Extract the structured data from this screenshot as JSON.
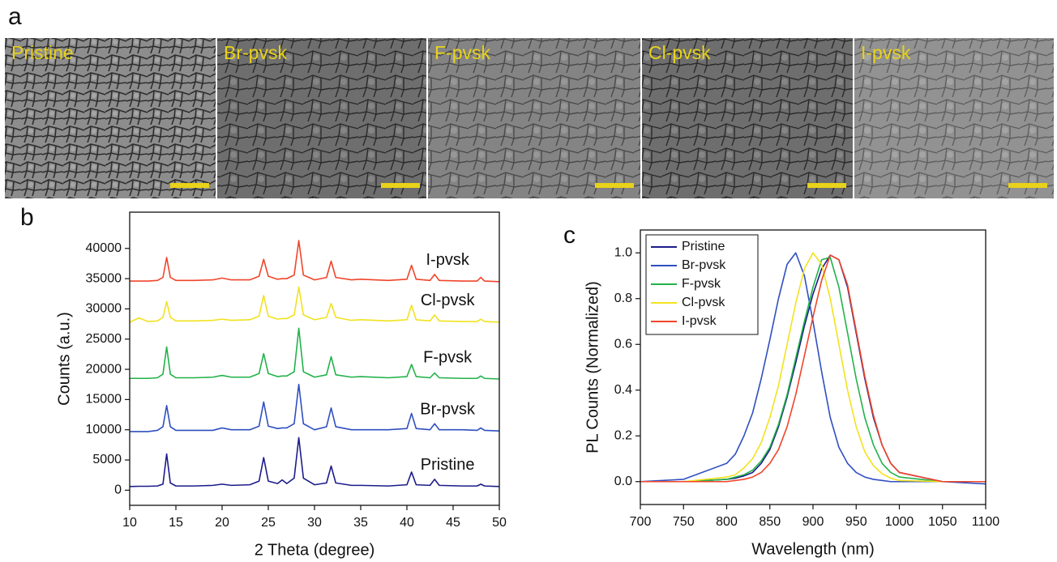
{
  "sem_panel": {
    "panel_label": "a",
    "labels": [
      "Pristine",
      "Br-pvsk",
      "F-pvsk",
      "Cl-pvsk",
      "I-pvsk"
    ]
  },
  "chart_data": [
    {
      "type": "line",
      "panel_label": "b",
      "x_label": "2 Theta (degree)",
      "y_label": "Counts (a.u.)",
      "x": [
        10,
        11,
        12,
        13,
        13.6,
        14,
        14.4,
        15,
        17,
        19,
        20,
        21,
        23,
        24,
        24.5,
        25,
        26,
        26.5,
        27,
        27.8,
        28.3,
        28.8,
        30,
        31.3,
        31.8,
        32.3,
        34,
        35,
        38,
        40,
        40.5,
        41,
        42.5,
        43,
        43.5,
        46,
        47.6,
        48,
        48.4,
        50
      ],
      "series": [
        {
          "name": "Pristine",
          "color": "#1c1c8a",
          "values": [
            600,
            650,
            650,
            700,
            1000,
            6000,
            1200,
            700,
            700,
            800,
            1000,
            800,
            900,
            1500,
            5400,
            1500,
            1100,
            1700,
            1100,
            2000,
            8700,
            2000,
            900,
            1200,
            4000,
            1200,
            800,
            800,
            700,
            900,
            3000,
            900,
            800,
            1800,
            800,
            700,
            700,
            1000,
            700,
            600
          ]
        },
        {
          "name": "Br-pvsk",
          "color": "#2f4fc0",
          "values": [
            9700,
            9700,
            9700,
            9900,
            10500,
            14000,
            10500,
            9900,
            9900,
            9900,
            10300,
            10000,
            10000,
            10600,
            14600,
            10600,
            10200,
            10300,
            10300,
            11000,
            17500,
            11000,
            10000,
            10500,
            13600,
            10500,
            10000,
            10000,
            10000,
            10200,
            12700,
            10200,
            10000,
            11000,
            10000,
            10000,
            9900,
            10300,
            9900,
            9800
          ]
        },
        {
          "name": "F-pvsk",
          "color": "#22b24a",
          "values": [
            18500,
            18500,
            18500,
            18600,
            19200,
            23700,
            19200,
            18600,
            18600,
            18700,
            19000,
            18700,
            18700,
            19300,
            22600,
            19300,
            18800,
            18900,
            18900,
            19600,
            26800,
            19600,
            18700,
            19100,
            22100,
            19100,
            18700,
            18800,
            18600,
            18800,
            20800,
            18800,
            18600,
            19400,
            18600,
            18500,
            18500,
            18900,
            18500,
            18400
          ]
        },
        {
          "name": "Cl-pvsk",
          "color": "#f2e21e",
          "values": [
            27800,
            28500,
            27900,
            28000,
            28600,
            31200,
            28600,
            28000,
            28000,
            28100,
            28300,
            28100,
            28200,
            28800,
            32200,
            28800,
            28300,
            28400,
            28400,
            29000,
            33600,
            29000,
            28200,
            28600,
            30900,
            28600,
            28100,
            28200,
            28000,
            28200,
            30600,
            28200,
            28000,
            29000,
            28000,
            27900,
            27900,
            28300,
            27900,
            27800
          ]
        },
        {
          "name": "I-pvsk",
          "color": "#f0452a",
          "values": [
            34600,
            34600,
            34600,
            34700,
            35200,
            38500,
            35200,
            34700,
            34700,
            34800,
            35100,
            34800,
            34800,
            35400,
            38200,
            35400,
            34900,
            35000,
            35000,
            35600,
            41300,
            35600,
            34800,
            35200,
            37900,
            35200,
            34800,
            34900,
            34700,
            34900,
            37200,
            34900,
            34700,
            35700,
            34700,
            34600,
            34600,
            35200,
            34600,
            34500
          ]
        }
      ],
      "xlim": [
        10,
        50
      ],
      "ylim": [
        -2500,
        46000
      ],
      "xticks": [
        10,
        15,
        20,
        25,
        30,
        35,
        40,
        45,
        50
      ],
      "yticks": [
        0,
        5000,
        10000,
        15000,
        20000,
        25000,
        30000,
        35000,
        40000
      ]
    },
    {
      "type": "line",
      "panel_label": "c",
      "x_label": "Wavelength (nm)",
      "y_label": "PL Counts (Normalized)",
      "legend": "upper left",
      "x": [
        700,
        750,
        800,
        810,
        820,
        830,
        840,
        850,
        860,
        870,
        880,
        890,
        900,
        910,
        920,
        930,
        940,
        950,
        960,
        970,
        980,
        990,
        1000,
        1050,
        1100
      ],
      "series": [
        {
          "name": "Pristine",
          "color": "#1c1c8a",
          "values": [
            0,
            0,
            0.01,
            0.015,
            0.025,
            0.04,
            0.08,
            0.14,
            0.24,
            0.37,
            0.52,
            0.68,
            0.82,
            0.93,
            0.99,
            0.97,
            0.85,
            0.65,
            0.45,
            0.28,
            0.16,
            0.08,
            0.04,
            0,
            0
          ]
        },
        {
          "name": "Br-pvsk",
          "color": "#2f4fc0",
          "values": [
            0,
            0.01,
            0.08,
            0.12,
            0.2,
            0.3,
            0.45,
            0.62,
            0.8,
            0.95,
            1.0,
            0.9,
            0.7,
            0.48,
            0.28,
            0.15,
            0.08,
            0.04,
            0.02,
            0.01,
            0.005,
            0,
            0,
            0,
            -0.01
          ]
        },
        {
          "name": "F-pvsk",
          "color": "#22b24a",
          "values": [
            0,
            0,
            0.01,
            0.02,
            0.03,
            0.05,
            0.09,
            0.15,
            0.25,
            0.38,
            0.54,
            0.7,
            0.85,
            0.97,
            0.98,
            0.85,
            0.65,
            0.45,
            0.28,
            0.16,
            0.08,
            0.04,
            0.02,
            0,
            0
          ]
        },
        {
          "name": "Cl-pvsk",
          "color": "#f2e21e",
          "values": [
            0,
            0,
            0.02,
            0.03,
            0.06,
            0.1,
            0.17,
            0.28,
            0.42,
            0.6,
            0.78,
            0.93,
            1.0,
            0.95,
            0.8,
            0.6,
            0.4,
            0.24,
            0.13,
            0.07,
            0.035,
            0.015,
            0.005,
            0,
            0
          ]
        },
        {
          "name": "I-pvsk",
          "color": "#f0452a",
          "values": [
            0,
            0,
            0,
            0.005,
            0.01,
            0.02,
            0.04,
            0.08,
            0.14,
            0.24,
            0.38,
            0.55,
            0.72,
            0.88,
            0.99,
            0.97,
            0.86,
            0.66,
            0.46,
            0.29,
            0.16,
            0.08,
            0.04,
            0,
            0
          ]
        }
      ],
      "xlim": [
        700,
        1100
      ],
      "ylim": [
        -0.1,
        1.1
      ],
      "xticks": [
        700,
        750,
        800,
        850,
        900,
        950,
        1000,
        1050,
        1100
      ],
      "yticks": [
        {
          "value": 0,
          "label": "0.0"
        },
        0.2,
        0.4,
        0.6,
        0.8,
        {
          "value": 1,
          "label": "1.0"
        }
      ]
    }
  ]
}
